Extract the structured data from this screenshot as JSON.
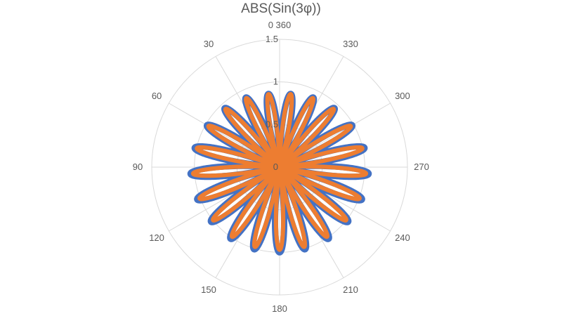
{
  "chart_data": {
    "type": "radar",
    "title": "ABS(Sin(3φ))",
    "angle_direction": "counterclockwise",
    "angle_ticks": [
      "0 360",
      "30",
      "60",
      "90",
      "120",
      "150",
      "180",
      "210",
      "240",
      "270",
      "300",
      "330"
    ],
    "radial_ticks": [
      "0",
      "0.5",
      "1",
      "1.5"
    ],
    "radial_range": [
      0,
      1.5
    ],
    "grid": true,
    "legend": "none",
    "curve": "r = ABS(Sin(3φ))",
    "series": [
      {
        "color": "#4472C4",
        "petals": 21,
        "value_at_0_deg": 0,
        "value_at_270_deg": 1.05,
        "value_at_90_deg": 1.05,
        "value_at_180_deg": 1.0
      },
      {
        "color": "#ED7D31",
        "petals": 21,
        "value_at_0_deg": 0,
        "value_at_270_deg": 1.02,
        "value_at_90_deg": 1.02,
        "value_at_180_deg": 0.97
      }
    ]
  }
}
